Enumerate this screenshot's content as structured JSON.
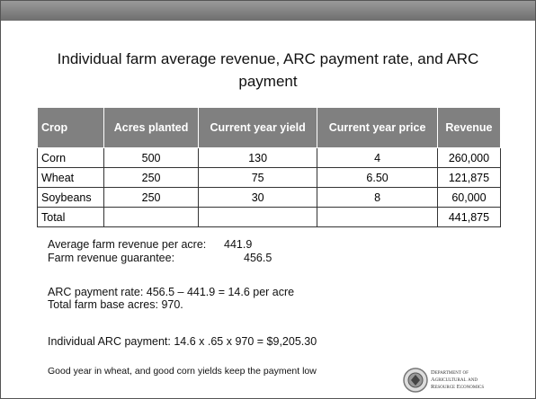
{
  "slide": {
    "title_line1": "Individual farm average revenue, ARC payment rate, and ARC",
    "title_line2": "payment",
    "table": {
      "header": [
        "Crop",
        "Acres planted",
        "Current year yield",
        "Current year price",
        "Revenue"
      ],
      "rows": [
        [
          "Corn",
          "500",
          "130",
          "4",
          "260,000"
        ],
        [
          "Wheat",
          "250",
          "75",
          "6.50",
          "121,875"
        ],
        [
          "Soybeans",
          "250",
          "30",
          "8",
          "60,000"
        ]
      ],
      "total": {
        "label": "Total",
        "revenue": "441,875"
      }
    },
    "avg_label": "Average farm revenue per acre:",
    "avg_value": "441.9",
    "guarantee_label": "Farm revenue guarantee:",
    "guarantee_value": "456.5",
    "arc_rate": "ARC payment rate:  456.5 – 441.9 = 14.6 per acre",
    "base_acres": "Total farm base acres: 970.",
    "arc_payment": "Individual ARC payment:  14.6 x .65 x 970 =  $9,205.30",
    "footnote": "Good year in wheat, and good corn yields keep the payment low",
    "logo": [
      "Department of",
      "Agricultural and",
      "Resource Economics"
    ]
  }
}
